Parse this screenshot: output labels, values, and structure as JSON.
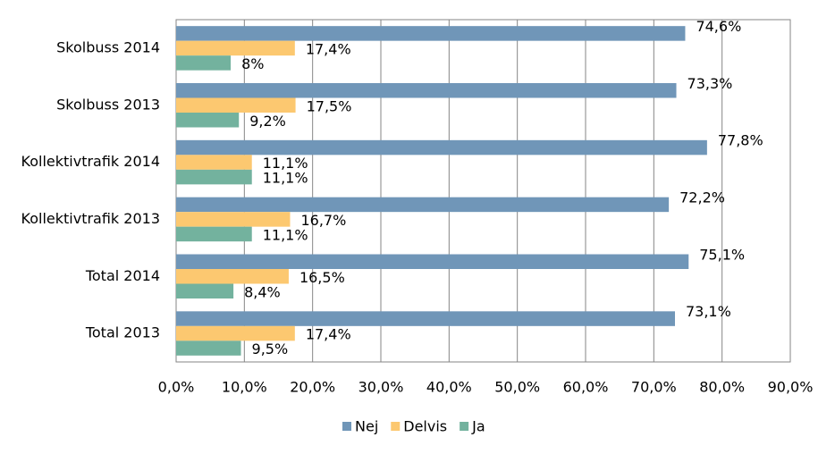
{
  "chart_data": {
    "type": "bar",
    "orientation": "horizontal",
    "categories": [
      "Skolbuss 2014",
      "Skolbuss 2013",
      "Kollektivtrafik 2014",
      "Kollektivtrafik 2013",
      "Total 2014",
      "Total 2013"
    ],
    "series": [
      {
        "name": "Nej",
        "color": "#7096b8",
        "values": [
          74.6,
          73.3,
          77.8,
          72.2,
          75.1,
          73.1
        ],
        "value_labels": [
          "74,6%",
          "73,3%",
          "77,8%",
          "72,2%",
          "75,1%",
          "73,1%"
        ]
      },
      {
        "name": "Delvis",
        "color": "#fcc870",
        "values": [
          17.4,
          17.5,
          11.1,
          16.7,
          16.5,
          17.4
        ],
        "value_labels": [
          "17,4%",
          "17,5%",
          "11,1%",
          "16,7%",
          "16,5%",
          "17,4%"
        ]
      },
      {
        "name": "Ja",
        "color": "#73b29e",
        "values": [
          8,
          9.2,
          11.1,
          11.1,
          8.4,
          9.5
        ],
        "value_labels": [
          "8%",
          "9,2%",
          "11,1%",
          "11,1%",
          "8,4%",
          "9,5%"
        ]
      }
    ],
    "xlim": [
      0,
      90
    ],
    "xticks": [
      {
        "value": 0,
        "label": "0,0%"
      },
      {
        "value": 10,
        "label": "10,0%"
      },
      {
        "value": 20,
        "label": "20,0%"
      },
      {
        "value": 30,
        "label": "30,0%"
      },
      {
        "value": 40,
        "label": "40,0%"
      },
      {
        "value": 50,
        "label": "50,0%"
      },
      {
        "value": 60,
        "label": "60,0%"
      },
      {
        "value": 70,
        "label": "70,0%"
      },
      {
        "value": 80,
        "label": "80,0%"
      },
      {
        "value": 90,
        "label": "90,0%"
      }
    ],
    "grid": true,
    "legend": "bottom"
  }
}
